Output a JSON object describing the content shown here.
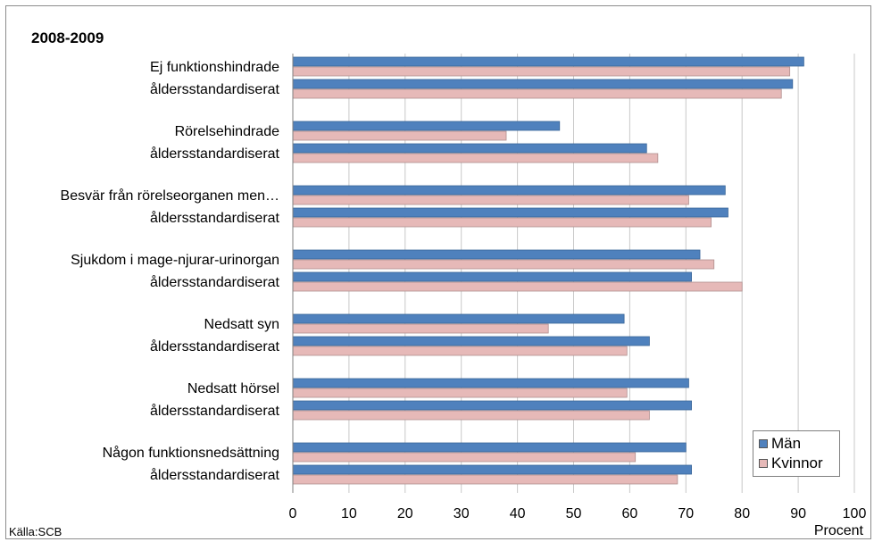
{
  "chart_data": {
    "type": "bar",
    "orientation": "horizontal",
    "title": "2008-2009",
    "xlabel": "Procent",
    "source": "Källa:SCB",
    "xlim": [
      0,
      100
    ],
    "xticks": [
      0,
      10,
      20,
      30,
      40,
      50,
      60,
      70,
      80,
      90,
      100
    ],
    "grid": "vertical",
    "legend_position": "bottom-right",
    "categories": [
      "Ej funktionshindrade",
      "åldersstandardiserat",
      "Rörelsehindrade",
      "åldersstandardiserat",
      "Besvär från rörelseorganen men…",
      "åldersstandardiserat",
      "Sjukdom i mage-njurar-urinorgan",
      "åldersstandardiserat",
      "Nedsatt syn",
      "åldersstandardiserat",
      "Nedsatt hörsel",
      "åldersstandardiserat",
      "Någon funktionsnedsättning",
      "åldersstandardiserat"
    ],
    "series": [
      {
        "name": "Män",
        "color": "#4f81bd",
        "values": [
          91,
          89,
          47.5,
          63,
          77,
          77.5,
          72.5,
          71,
          59,
          63.5,
          70.5,
          71,
          70,
          71
        ]
      },
      {
        "name": "Kvinnor",
        "color": "#e6b9b8",
        "values": [
          88.5,
          87,
          38,
          65,
          70.5,
          74.5,
          75,
          80,
          45.5,
          59.5,
          59.5,
          63.5,
          61,
          68.5
        ]
      }
    ]
  }
}
